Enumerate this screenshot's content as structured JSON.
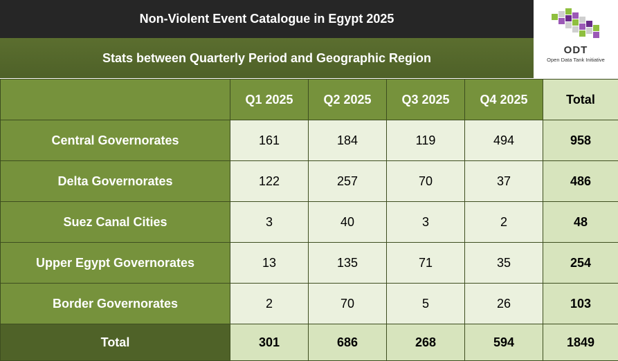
{
  "title": "Non-Violent Event Catalogue in Egypt 2025",
  "subtitle": "Stats between Quarterly Period and Geographic Region",
  "logo": {
    "word": "ODT",
    "tagline": "Open Data Tank Initiative",
    "colors": [
      "#8fbf3f",
      "#9b59b6",
      "#cfcfcf",
      "#6a2b8a"
    ]
  },
  "table": {
    "headers": [
      "Q1 2025",
      "Q2 2025",
      "Q3 2025",
      "Q4 2025",
      "Total"
    ],
    "rows": [
      {
        "label": "Central Governorates",
        "values": [
          "161",
          "184",
          "119",
          "494"
        ],
        "total": "958"
      },
      {
        "label": "Delta Governorates",
        "values": [
          "122",
          "257",
          "70",
          "37"
        ],
        "total": "486"
      },
      {
        "label": "Suez Canal Cities",
        "values": [
          "3",
          "40",
          "3",
          "2"
        ],
        "total": "48"
      },
      {
        "label": "Upper Egypt Governorates",
        "values": [
          "13",
          "135",
          "71",
          "35"
        ],
        "total": "254"
      },
      {
        "label": "Border Governorates",
        "values": [
          "2",
          "70",
          "5",
          "26"
        ],
        "total": "103"
      }
    ],
    "footer": {
      "label": "Total",
      "values": [
        "301",
        "686",
        "268",
        "594"
      ],
      "total": "1849"
    }
  }
}
